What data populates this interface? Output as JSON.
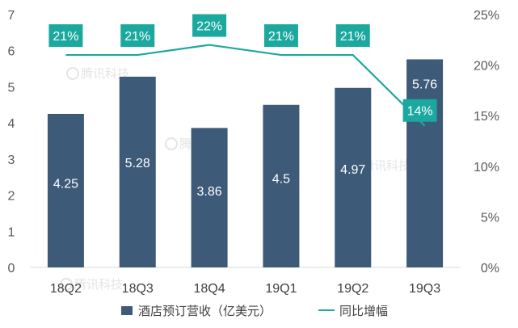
{
  "chart_data": {
    "type": "bar",
    "categories": [
      "18Q2",
      "18Q3",
      "18Q4",
      "19Q1",
      "19Q2",
      "19Q3"
    ],
    "series": [
      {
        "name": "酒店预订营收（亿美元）",
        "type": "bar",
        "axis": "left",
        "values": [
          4.25,
          5.28,
          3.86,
          4.5,
          4.97,
          5.76
        ],
        "data_labels": [
          "4.25",
          "5.28",
          "3.86",
          "4.5",
          "4.97",
          "5.76"
        ],
        "color": "#3d5a78"
      },
      {
        "name": "同比增幅",
        "type": "line",
        "axis": "right",
        "values": [
          21,
          21,
          22,
          21,
          21,
          14
        ],
        "data_labels": [
          "21%",
          "21%",
          "22%",
          "21%",
          "21%",
          "14%"
        ],
        "color": "#1ba89e"
      }
    ],
    "y_left": {
      "ylim": [
        0,
        7
      ],
      "ticks": [
        "0",
        "1",
        "2",
        "3",
        "4",
        "5",
        "6",
        "7"
      ]
    },
    "y_right": {
      "ylim": [
        0,
        25
      ],
      "ticks": [
        "0%",
        "5%",
        "10%",
        "15%",
        "20%",
        "25%"
      ]
    },
    "grid": false,
    "legend_position": "bottom",
    "watermark": "腾讯科技"
  }
}
